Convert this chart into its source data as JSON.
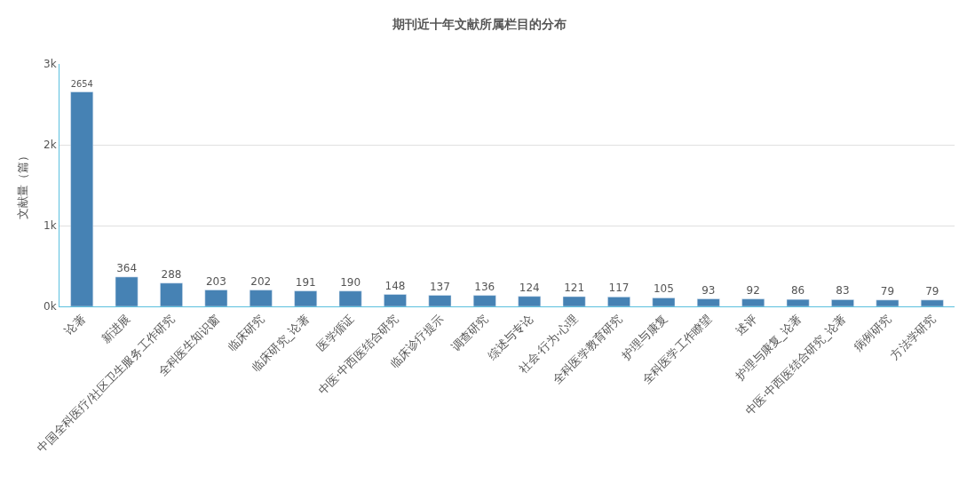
{
  "chart_data": {
    "type": "bar",
    "title": "期刊近十年文献所属栏目的分布",
    "ylabel": "文献量（篇）",
    "categories": [
      "论著",
      "新进展",
      "中国全科医疗/社区卫生服务工作研究",
      "全科医生知识窗",
      "临床研究",
      "临床研究_论著",
      "医学循证",
      "中医·中西医结合研究",
      "临床诊疗提示",
      "调查研究",
      "综述与专论",
      "社会·行为·心理",
      "全科医学教育研究",
      "护理与康复",
      "全科医学工作瞭望",
      "述评",
      "护理与康复_论著",
      "中医·中西医结合研究_论著",
      "病例研究",
      "方法学研究"
    ],
    "values": [
      2654,
      364,
      288,
      203,
      202,
      191,
      190,
      148,
      137,
      136,
      124,
      121,
      117,
      105,
      93,
      92,
      86,
      83,
      79,
      79
    ],
    "color": "#4682b4",
    "data_labels": true,
    "grid": "y",
    "ylim": [
      0,
      3000
    ],
    "yticks": [
      {
        "value": 0,
        "label": "0k"
      },
      {
        "value": 1000,
        "label": "1k"
      },
      {
        "value": 2000,
        "label": "2k"
      },
      {
        "value": 3000,
        "label": "3k"
      }
    ]
  }
}
